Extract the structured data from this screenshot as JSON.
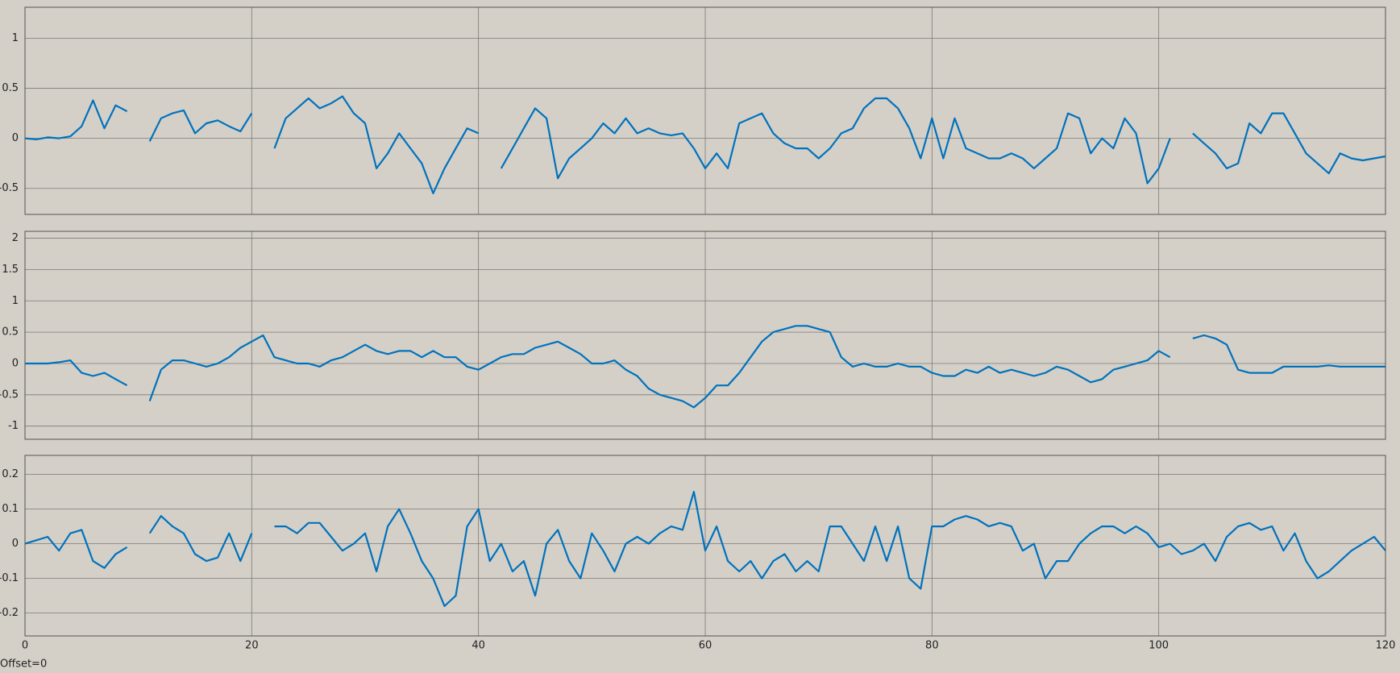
{
  "chart_data": [
    {
      "type": "line",
      "color": "#0072bd",
      "grid": true,
      "xlim": [
        0,
        120
      ],
      "xticks": [
        0,
        20,
        40,
        60,
        80,
        100,
        120
      ],
      "ylim": [
        -0.76,
        1.31
      ],
      "yticks": [
        -0.5,
        0,
        0.5,
        1
      ],
      "x": [
        0,
        1,
        2,
        3,
        4,
        5,
        6,
        7,
        8,
        9,
        10,
        11,
        12,
        13,
        14,
        15,
        16,
        17,
        18,
        19,
        20,
        21,
        22,
        23,
        24,
        25,
        26,
        27,
        28,
        29,
        30,
        31,
        32,
        33,
        34,
        35,
        36,
        37,
        38,
        39,
        40,
        41,
        42,
        43,
        44,
        45,
        46,
        47,
        48,
        49,
        50,
        51,
        52,
        53,
        54,
        55,
        56,
        57,
        58,
        59,
        60,
        61,
        62,
        63,
        64,
        65,
        66,
        67,
        68,
        69,
        70,
        71,
        72,
        73,
        74,
        75,
        76,
        77,
        78,
        79,
        80,
        81,
        82,
        83,
        84,
        85,
        86,
        87,
        88,
        89,
        90,
        91,
        92,
        93,
        94,
        95,
        96,
        97,
        98,
        99,
        100,
        101,
        102,
        103,
        104,
        105,
        106,
        107,
        108,
        109,
        110,
        111,
        112,
        113,
        114,
        115,
        116,
        117,
        118,
        119,
        120
      ],
      "values": [
        0,
        -0.01,
        0.01,
        0,
        0.02,
        0.12,
        0.38,
        0.1,
        0.33,
        0.27,
        null,
        -0.03,
        0.2,
        0.25,
        0.28,
        0.05,
        0.15,
        0.18,
        0.12,
        0.07,
        0.25,
        null,
        -0.1,
        0.2,
        0.3,
        0.4,
        0.3,
        0.35,
        0.42,
        0.25,
        0.15,
        -0.3,
        -0.15,
        0.05,
        -0.1,
        -0.25,
        -0.55,
        -0.3,
        -0.1,
        0.1,
        0.05,
        null,
        -0.3,
        -0.1,
        0.1,
        0.3,
        0.2,
        -0.4,
        -0.2,
        -0.1,
        0,
        0.15,
        0.05,
        0.2,
        0.05,
        0.1,
        0.05,
        0.03,
        0.05,
        -0.1,
        -0.3,
        -0.15,
        -0.3,
        0.15,
        0.2,
        0.25,
        0.05,
        -0.05,
        -0.1,
        -0.1,
        -0.2,
        -0.1,
        0.05,
        0.1,
        0.3,
        0.4,
        0.4,
        0.3,
        0.1,
        -0.2,
        0.2,
        -0.2,
        0.2,
        -0.1,
        -0.15,
        -0.2,
        -0.2,
        -0.15,
        -0.2,
        -0.3,
        -0.2,
        -0.1,
        0.25,
        0.2,
        -0.15,
        0,
        -0.1,
        0.2,
        0.05,
        -0.45,
        -0.3,
        0,
        null,
        0.05,
        -0.05,
        -0.15,
        -0.3,
        -0.25,
        0.15,
        0.05,
        0.25,
        0.25,
        0.05,
        -0.15,
        -0.25,
        -0.35,
        -0.15,
        -0.2,
        -0.22,
        -0.2,
        -0.18
      ]
    },
    {
      "type": "line",
      "color": "#0072bd",
      "grid": true,
      "xlim": [
        0,
        120
      ],
      "xticks": [
        0,
        20,
        40,
        60,
        80,
        100,
        120
      ],
      "ylim": [
        -1.21,
        2.11
      ],
      "yticks": [
        -1,
        -0.5,
        0,
        0.5,
        1,
        1.5,
        2
      ],
      "x": [
        0,
        1,
        2,
        3,
        4,
        5,
        6,
        7,
        8,
        9,
        10,
        11,
        12,
        13,
        14,
        15,
        16,
        17,
        18,
        19,
        20,
        21,
        22,
        23,
        24,
        25,
        26,
        27,
        28,
        29,
        30,
        31,
        32,
        33,
        34,
        35,
        36,
        37,
        38,
        39,
        40,
        41,
        42,
        43,
        44,
        45,
        46,
        47,
        48,
        49,
        50,
        51,
        52,
        53,
        54,
        55,
        56,
        57,
        58,
        59,
        60,
        61,
        62,
        63,
        64,
        65,
        66,
        67,
        68,
        69,
        70,
        71,
        72,
        73,
        74,
        75,
        76,
        77,
        78,
        79,
        80,
        81,
        82,
        83,
        84,
        85,
        86,
        87,
        88,
        89,
        90,
        91,
        92,
        93,
        94,
        95,
        96,
        97,
        98,
        99,
        100,
        101,
        102,
        103,
        104,
        105,
        106,
        107,
        108,
        109,
        110,
        111,
        112,
        113,
        114,
        115,
        116,
        117,
        118,
        119,
        120
      ],
      "values": [
        0,
        0,
        0,
        0.02,
        0.05,
        -0.15,
        -0.2,
        -0.15,
        -0.25,
        -0.35,
        null,
        -0.6,
        -0.1,
        0.05,
        0.05,
        0,
        -0.05,
        0,
        0.1,
        0.25,
        0.35,
        0.45,
        0.1,
        0.05,
        0,
        0,
        -0.05,
        0.05,
        0.1,
        0.2,
        0.3,
        0.2,
        0.15,
        0.2,
        0.2,
        0.1,
        0.2,
        0.1,
        0.1,
        -0.05,
        -0.1,
        0,
        0.1,
        0.15,
        0.15,
        0.25,
        0.3,
        0.35,
        0.25,
        0.15,
        0,
        0,
        0.05,
        -0.1,
        -0.2,
        -0.4,
        -0.5,
        -0.55,
        -0.6,
        -0.7,
        -0.55,
        -0.35,
        -0.35,
        -0.15,
        0.1,
        0.35,
        0.5,
        0.55,
        0.6,
        0.6,
        0.55,
        0.5,
        0.1,
        -0.05,
        0,
        -0.05,
        -0.05,
        0,
        -0.05,
        -0.05,
        -0.15,
        -0.2,
        -0.2,
        -0.1,
        -0.15,
        -0.05,
        -0.15,
        -0.1,
        -0.15,
        -0.2,
        -0.15,
        -0.05,
        -0.1,
        -0.2,
        -0.3,
        -0.25,
        -0.1,
        -0.05,
        0,
        0.05,
        0.2,
        0.1,
        null,
        0.4,
        0.45,
        0.4,
        0.3,
        -0.1,
        -0.15,
        -0.15,
        -0.15,
        -0.05,
        -0.05,
        -0.05,
        -0.05,
        -0.03,
        -0.05,
        -0.05,
        -0.05,
        -0.05,
        -0.05
      ]
    },
    {
      "type": "line",
      "color": "#0072bd",
      "grid": true,
      "xlim": [
        0,
        120
      ],
      "xticks": [
        0,
        20,
        40,
        60,
        80,
        100,
        120
      ],
      "ylim": [
        -0.266,
        0.255
      ],
      "yticks": [
        -0.2,
        -0.1,
        0,
        0.1,
        0.2
      ],
      "x": [
        0,
        1,
        2,
        3,
        4,
        5,
        6,
        7,
        8,
        9,
        10,
        11,
        12,
        13,
        14,
        15,
        16,
        17,
        18,
        19,
        20,
        21,
        22,
        23,
        24,
        25,
        26,
        27,
        28,
        29,
        30,
        31,
        32,
        33,
        34,
        35,
        36,
        37,
        38,
        39,
        40,
        41,
        42,
        43,
        44,
        45,
        46,
        47,
        48,
        49,
        50,
        51,
        52,
        53,
        54,
        55,
        56,
        57,
        58,
        59,
        60,
        61,
        62,
        63,
        64,
        65,
        66,
        67,
        68,
        69,
        70,
        71,
        72,
        73,
        74,
        75,
        76,
        77,
        78,
        79,
        80,
        81,
        82,
        83,
        84,
        85,
        86,
        87,
        88,
        89,
        90,
        91,
        92,
        93,
        94,
        95,
        96,
        97,
        98,
        99,
        100,
        101,
        102,
        103,
        104,
        105,
        106,
        107,
        108,
        109,
        110,
        111,
        112,
        113,
        114,
        115,
        116,
        117,
        118,
        119,
        120
      ],
      "values": [
        0,
        0.01,
        0.02,
        -0.02,
        0.03,
        0.04,
        -0.05,
        -0.07,
        -0.03,
        -0.01,
        null,
        0.03,
        0.08,
        0.05,
        0.03,
        -0.03,
        -0.05,
        -0.04,
        0.03,
        -0.05,
        0.03,
        null,
        0.05,
        0.05,
        0.03,
        0.06,
        0.06,
        0.02,
        -0.02,
        0,
        0.03,
        -0.08,
        0.05,
        0.1,
        0.03,
        -0.05,
        -0.1,
        -0.18,
        -0.15,
        0.05,
        0.1,
        -0.05,
        0,
        -0.08,
        -0.05,
        -0.15,
        0,
        0.04,
        -0.05,
        -0.1,
        0.03,
        -0.02,
        -0.08,
        0,
        0.02,
        0,
        0.03,
        0.05,
        0.04,
        0.15,
        -0.02,
        0.05,
        -0.05,
        -0.08,
        -0.05,
        -0.1,
        -0.05,
        -0.03,
        -0.08,
        -0.05,
        -0.08,
        0.05,
        0.05,
        0,
        -0.05,
        0.05,
        -0.05,
        0.05,
        -0.1,
        -0.13,
        0.05,
        0.05,
        0.07,
        0.08,
        0.07,
        0.05,
        0.06,
        0.05,
        -0.02,
        0,
        -0.1,
        -0.05,
        -0.05,
        0,
        0.03,
        0.05,
        0.05,
        0.03,
        0.05,
        0.03,
        -0.01,
        0,
        -0.03,
        -0.02,
        0,
        -0.05,
        0.02,
        0.05,
        0.06,
        0.04,
        0.05,
        -0.02,
        0.03,
        -0.05,
        -0.1,
        -0.08,
        -0.05,
        -0.02,
        0,
        0.02,
        -0.02
      ]
    }
  ],
  "footer": "Offset=0"
}
